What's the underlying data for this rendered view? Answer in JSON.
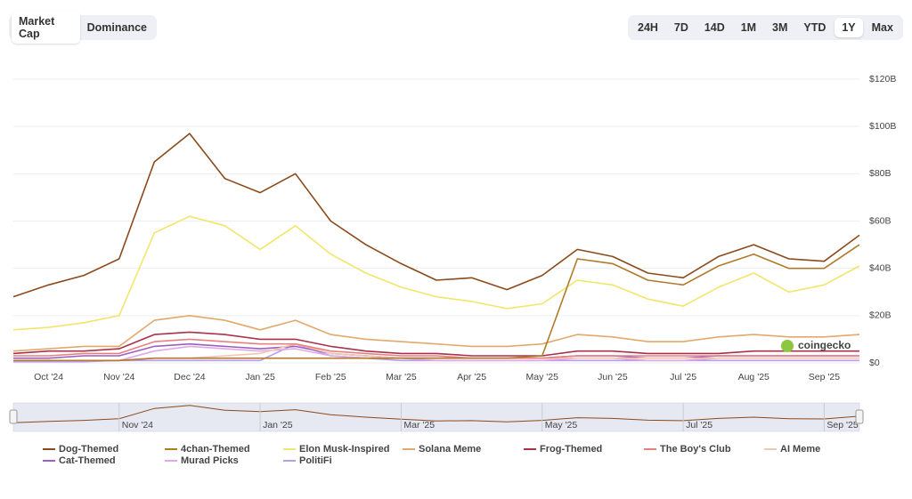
{
  "toolbar": {
    "tabs": [
      "Market Cap",
      "Dominance"
    ],
    "active_tab": 0,
    "ranges": [
      "24H",
      "7D",
      "14D",
      "1M",
      "3M",
      "YTD",
      "1Y",
      "Max"
    ],
    "active_range": 6
  },
  "watermark": "coingecko",
  "chart_data": {
    "type": "line",
    "categories": [
      null,
      "Oct '24",
      null,
      "Nov '24",
      null,
      "Dec '24",
      null,
      "Jan '25",
      null,
      "Feb '25",
      null,
      "Mar '25",
      null,
      "Apr '25",
      null,
      "May '25",
      null,
      "Jun '25",
      null,
      "Jul '25",
      null,
      "Aug '25",
      null,
      "Sep '25",
      null
    ],
    "ylim": [
      0,
      120
    ],
    "yticks": [
      {
        "value": 0,
        "label": "$0"
      },
      {
        "value": 20,
        "label": "$20B"
      },
      {
        "value": 40,
        "label": "$40B"
      },
      {
        "value": 60,
        "label": "$60B"
      },
      {
        "value": 80,
        "label": "$80B"
      },
      {
        "value": 100,
        "label": "$100B"
      },
      {
        "value": 120,
        "label": "$120B"
      }
    ],
    "grid": true,
    "series": [
      {
        "name": "Dog-Themed",
        "color": "#8b4a1c",
        "values": [
          28,
          33,
          37,
          44,
          85,
          97,
          78,
          72,
          80,
          60,
          50,
          42,
          35,
          36,
          31,
          37,
          48,
          45,
          38,
          36,
          45,
          50,
          44,
          43,
          54
        ]
      },
      {
        "name": "4chan-Themed",
        "color": "#b07a2a",
        "values": [
          1,
          1,
          1,
          1,
          2,
          2,
          2,
          2,
          2,
          2,
          2,
          2,
          2,
          2,
          2,
          3,
          44,
          42,
          35,
          33,
          41,
          46,
          40,
          40,
          50
        ]
      },
      {
        "name": "Elon Musk-Inspired",
        "color": "#f2e56b",
        "values": [
          14,
          15,
          17,
          20,
          55,
          62,
          58,
          48,
          58,
          46,
          38,
          32,
          28,
          26,
          23,
          25,
          35,
          33,
          27,
          24,
          32,
          38,
          30,
          33,
          41
        ]
      },
      {
        "name": "Solana Meme",
        "color": "#e3a86b",
        "values": [
          5,
          6,
          7,
          7,
          18,
          20,
          18,
          14,
          18,
          12,
          10,
          9,
          8,
          7,
          7,
          8,
          12,
          11,
          9,
          9,
          11,
          12,
          11,
          11,
          12
        ]
      },
      {
        "name": "Frog-Themed",
        "color": "#a8324a",
        "values": [
          4,
          5,
          5,
          6,
          12,
          13,
          12,
          10,
          10,
          7,
          5,
          4,
          4,
          3,
          3,
          3,
          5,
          5,
          4,
          4,
          4,
          5,
          5,
          5,
          5
        ]
      },
      {
        "name": "The Boy's Club",
        "color": "#e88080",
        "values": [
          3,
          3,
          4,
          4,
          9,
          10,
          9,
          8,
          8,
          5,
          4,
          3,
          3,
          2,
          2,
          2,
          3,
          3,
          3,
          3,
          3,
          3,
          3,
          3,
          3
        ]
      },
      {
        "name": "AI Meme",
        "color": "#f0c8b0",
        "values": [
          1,
          1,
          1,
          1,
          2,
          2,
          3,
          4,
          8,
          4,
          3,
          2,
          2,
          2,
          2,
          2,
          2,
          2,
          2,
          2,
          2,
          2,
          2,
          2,
          2
        ]
      },
      {
        "name": "Cat-Themed",
        "color": "#9b5fc0",
        "values": [
          2,
          2,
          3,
          3,
          7,
          8,
          7,
          6,
          7,
          4,
          3,
          2,
          2,
          2,
          2,
          2,
          3,
          3,
          2,
          2,
          3,
          3,
          3,
          3,
          3
        ]
      },
      {
        "name": "Murad Picks",
        "color": "#e0a8e8",
        "values": [
          1,
          1,
          1,
          1,
          5,
          7,
          6,
          5,
          6,
          3,
          2,
          2,
          1,
          1,
          1,
          1,
          2,
          2,
          1,
          1,
          2,
          2,
          2,
          2,
          2
        ]
      },
      {
        "name": "PolitiFi",
        "color": "#b89cf0",
        "values": [
          0.5,
          0.5,
          0.5,
          1,
          1,
          1,
          1,
          1,
          8,
          3,
          2,
          1,
          1,
          1,
          1,
          1,
          1,
          1,
          1,
          1,
          1,
          1,
          1,
          1,
          1
        ]
      }
    ]
  },
  "navigator": {
    "labels": [
      "Nov '24",
      "Jan '25",
      "Mar '25",
      "May '25",
      "Jul '25",
      "Sep '25"
    ]
  }
}
